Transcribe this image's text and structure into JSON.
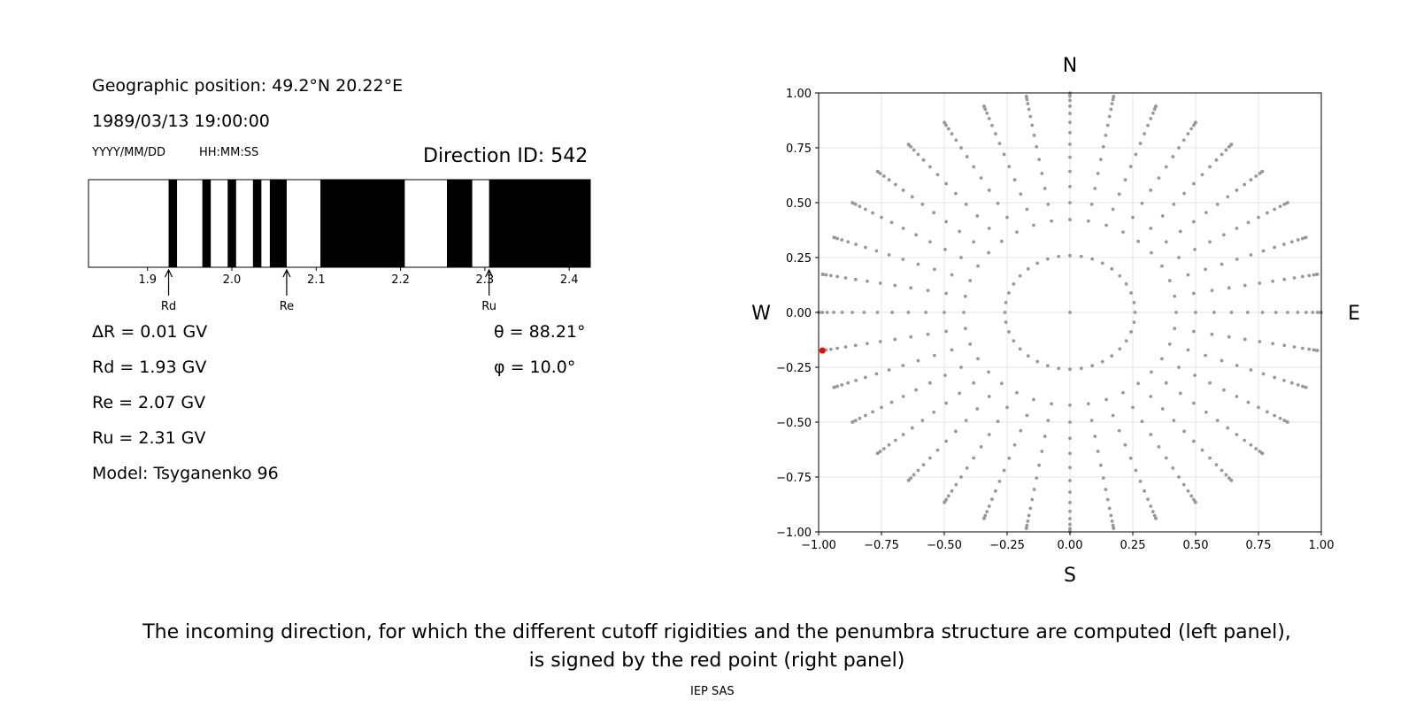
{
  "left_panel": {
    "geo_position": "Geographic position: 49.2°N 20.22°E",
    "datetime": "1989/03/13 19:00:00",
    "date_format": "YYYY/MM/DD",
    "time_format": "HH:MM:SS",
    "direction_id": "Direction ID: 542",
    "delta_r": "ΔR = 0.01 GV",
    "rd_text": "Rd = 1.93 GV",
    "re_text": "Re = 2.07 GV",
    "ru_text": "Ru = 2.31 GV",
    "model": "Model: Tsyganenko 96",
    "theta": "θ = 88.21°",
    "phi": "φ = 10.0°"
  },
  "caption": {
    "line1": "The incoming direction, for which the different cutoff rigidities and the penumbra structure are computed (left panel),",
    "line2": "is signed by the red point (right panel)",
    "credit": "IEP SAS"
  },
  "chart_data": [
    {
      "type": "bar",
      "title": "",
      "xlabel": "",
      "ylabel": "",
      "xlim": [
        1.83,
        2.425
      ],
      "xticks": [
        1.9,
        2.0,
        2.1,
        2.2,
        2.3,
        2.4
      ],
      "tick_labels": [
        "1.9",
        "2.0",
        "2.1",
        "2.2",
        "2.3",
        "2.4"
      ],
      "forbidden_intervals_GV": [
        [
          1.925,
          1.935
        ],
        [
          1.965,
          1.975
        ],
        [
          1.995,
          2.005
        ],
        [
          2.025,
          2.035
        ],
        [
          2.045,
          2.065
        ],
        [
          2.105,
          2.205
        ],
        [
          2.255,
          2.285
        ],
        [
          2.305,
          2.425
        ]
      ],
      "markers": [
        {
          "label": "Rd",
          "value": 1.925
        },
        {
          "label": "Re",
          "value": 2.065
        },
        {
          "label": "Ru",
          "value": 2.305
        }
      ],
      "colors": {
        "allowed": "#ffffff",
        "forbidden": "#000000"
      }
    },
    {
      "type": "scatter",
      "title": "",
      "xlim": [
        -1.0,
        1.0
      ],
      "ylim": [
        -1.0,
        1.0
      ],
      "ticks": [
        -1.0,
        -0.75,
        -0.5,
        -0.25,
        0.0,
        0.25,
        0.5,
        0.75,
        1.0
      ],
      "tick_labels": [
        "−1.00",
        "−0.75",
        "−0.50",
        "−0.25",
        "0.00",
        "0.25",
        "0.50",
        "0.75",
        "1.00"
      ],
      "direction_labels": {
        "top": "N",
        "bottom": "S",
        "left": "W",
        "right": "E"
      },
      "grid": true,
      "grid_zenith_angles_deg": [
        0,
        15,
        25,
        30,
        35,
        40,
        45,
        50,
        55,
        60,
        65,
        70,
        75,
        80,
        85,
        88.21
      ],
      "grid_azimuth_step_deg": 10,
      "grid_color": "#999999",
      "selected_direction": {
        "x": -0.985,
        "y": -0.174
      },
      "selected_color": "#ff0000"
    }
  ]
}
